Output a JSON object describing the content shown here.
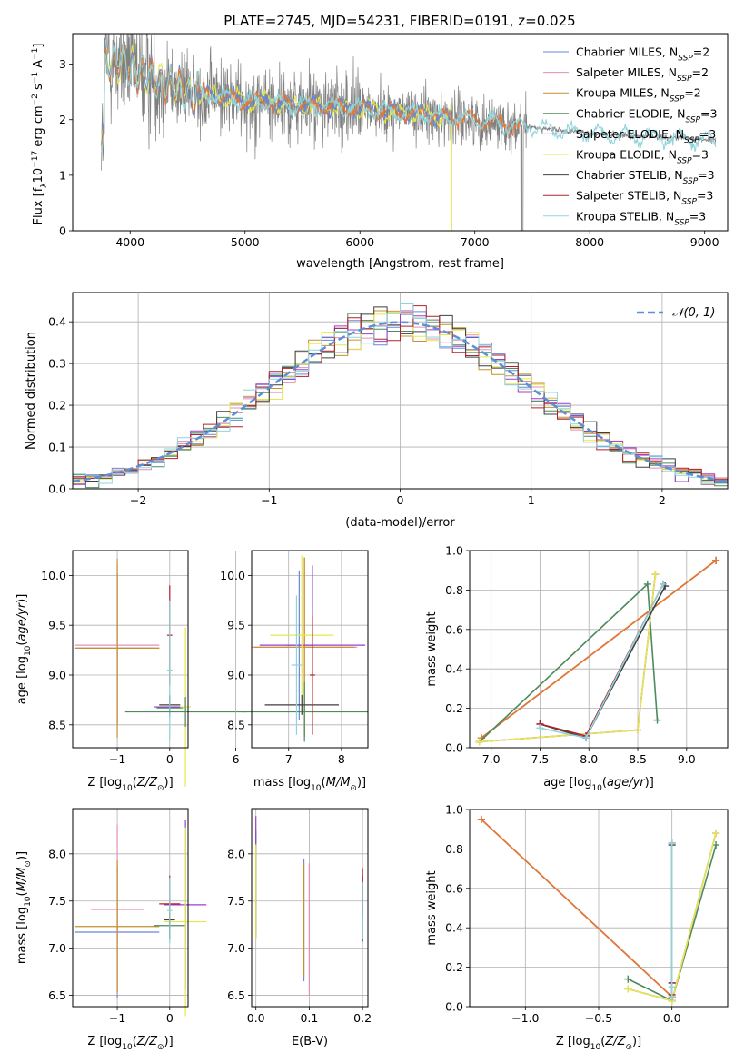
{
  "figure_title": "PLATE=2745, MJD=54231, FIBERID=0191, z=0.025",
  "colors": {
    "Chabrier MILES": "#6a87d8",
    "Salpeter MILES": "#e58fb3",
    "Kroupa MILES": "#c8902e",
    "Chabrier ELODIE": "#4d8a5d",
    "Salpeter ELODIE": "#9a3fcf",
    "Kroupa ELODIE": "#e6e84a",
    "Chabrier STELIB": "#3f3f3f",
    "Salpeter STELIB": "#b3202a",
    "Kroupa STELIB": "#8fd4dc",
    "data": "#808080",
    "orange": "#e0783a",
    "normal": "#5b8fd6"
  },
  "chart_data": [
    {
      "id": "spectrum",
      "type": "line",
      "title": "PLATE=2745, MJD=54231, FIBERID=0191, z=0.025",
      "xlabel": "wavelength [Angstrom, rest frame]",
      "ylabel": "Flux [f_λ 10^-17 erg cm^-2 s^-1 A^-1]",
      "xlim": [
        3500,
        9200
      ],
      "ylim": [
        0,
        3.55
      ],
      "xticks": [
        "4000",
        "5000",
        "6000",
        "7000",
        "8000",
        "9000"
      ],
      "yticks": [
        "0",
        "1",
        "2",
        "3"
      ],
      "grid": false,
      "legend_position": "top-right",
      "legend": [
        {
          "name": "Chabrier MILES",
          "nssp": "2"
        },
        {
          "name": "Salpeter MILES",
          "nssp": "2"
        },
        {
          "name": "Kroupa MILES",
          "nssp": "2"
        },
        {
          "name": "Chabrier ELODIE",
          "nssp": "3"
        },
        {
          "name": "Salpeter ELODIE",
          "nssp": "3"
        },
        {
          "name": "Kroupa ELODIE",
          "nssp": "3"
        },
        {
          "name": "Chabrier STELIB",
          "nssp": "3"
        },
        {
          "name": "Salpeter STELIB",
          "nssp": "3"
        },
        {
          "name": "Kroupa STELIB",
          "nssp": "3"
        }
      ],
      "continuum": [
        [
          3780,
          3.1
        ],
        [
          3900,
          3.05
        ],
        [
          4000,
          2.95
        ],
        [
          4100,
          2.85
        ],
        [
          4200,
          2.75
        ],
        [
          4300,
          2.65
        ],
        [
          4500,
          2.5
        ],
        [
          4700,
          2.45
        ],
        [
          5000,
          2.35
        ],
        [
          5300,
          2.3
        ],
        [
          5600,
          2.25
        ],
        [
          6000,
          2.2
        ],
        [
          6500,
          2.1
        ],
        [
          7000,
          2.0
        ],
        [
          7400,
          1.88
        ],
        [
          8000,
          1.75
        ],
        [
          8500,
          1.7
        ],
        [
          9100,
          1.63
        ]
      ],
      "data_range": [
        3750,
        9100
      ],
      "model_range_miles_elodie": [
        3750,
        6800
      ],
      "model_range_stelib": [
        3750,
        7400
      ]
    },
    {
      "id": "residuals",
      "type": "histogram",
      "xlabel": "(data-model)/error",
      "ylabel": "Normed distribution",
      "xlim": [
        -2.5,
        2.5
      ],
      "ylim": [
        0,
        0.47
      ],
      "xticks": [
        "−2",
        "−1",
        "0",
        "1",
        "2"
      ],
      "yticks": [
        "0.0",
        "0.1",
        "0.2",
        "0.3",
        "0.4"
      ],
      "grid": true,
      "legend_position": "top-right",
      "legend": "𝒩(0, 1)",
      "bin_width": 0.1
    },
    {
      "id": "age_vs_Z",
      "type": "errorbar",
      "xlabel": "Z [log10(Z/Z☉)]",
      "ylabel": "age  [log10(age/yr)]",
      "xlim": [
        -1.85,
        0.35
      ],
      "ylim": [
        8.27,
        10.25
      ],
      "xticks": [
        "−1",
        "0"
      ],
      "yticks": [
        "8.5",
        "9.0",
        "9.5",
        "10.0"
      ],
      "grid": true,
      "series": [
        {
          "name": "Chabrier MILES",
          "x": -1.0,
          "y": 9.27,
          "xerr": 0.8,
          "yerr": 0.75
        },
        {
          "name": "Salpeter MILES",
          "x": -1.0,
          "y": 9.3,
          "xerr": 0.8,
          "yerr": 0.8
        },
        {
          "name": "Kroupa MILES",
          "x": -1.0,
          "y": 9.27,
          "xerr": 0.8,
          "yerr": 0.9
        },
        {
          "name": "Chabrier ELODIE",
          "x": 0.0,
          "y": 8.67,
          "xerr": 0.25,
          "yerr": 0.05
        },
        {
          "name": "Salpeter ELODIE",
          "x": 0.0,
          "y": 8.68,
          "xerr": 0.3,
          "yerr": 0.1
        },
        {
          "name": "Kroupa ELODIE",
          "x": 0.3,
          "y": 8.68,
          "xerr": 0.1,
          "yerr": 0.8
        },
        {
          "name": "Chabrier STELIB",
          "x": 0.0,
          "y": 8.7,
          "xerr": 0.2,
          "yerr": 0.1
        },
        {
          "name": "Salpeter STELIB",
          "x": 0.0,
          "y": 9.4,
          "xerr": 0.05,
          "yerr": 0.5
        },
        {
          "name": "Kroupa STELIB",
          "x": 0.0,
          "y": 9.05,
          "xerr": 0.05,
          "yerr": 0.7
        },
        {
          "name": "Chabrier ELODIE",
          "x": 0.3,
          "y": 8.63,
          "xerr": 1.15,
          "yerr": 0.15
        }
      ]
    },
    {
      "id": "age_vs_mass",
      "type": "errorbar",
      "xlabel": "mass [log10(M/M☉)]",
      "ylabel": "",
      "xlim": [
        6.3,
        8.5
      ],
      "ylim": [
        8.27,
        10.25
      ],
      "xticks": [
        "6",
        "7",
        "8"
      ],
      "yticks": [
        "8.5",
        "9.0",
        "9.5",
        "10.0"
      ],
      "grid": true,
      "series": [
        {
          "name": "Chabrier MILES",
          "x": 7.2,
          "y": 9.3,
          "xerr": 0.25,
          "yerr": 0.75
        },
        {
          "name": "Salpeter MILES",
          "x": 7.3,
          "y": 9.28,
          "xerr": 1.0,
          "yerr": 0.9
        },
        {
          "name": "Kroupa MILES",
          "x": 7.3,
          "y": 9.28,
          "xerr": 0.95,
          "yerr": 0.9
        },
        {
          "name": "Chabrier ELODIE",
          "x": 7.3,
          "y": 8.63,
          "xerr": 1.2,
          "yerr": 0.3
        },
        {
          "name": "Salpeter ELODIE",
          "x": 7.45,
          "y": 9.3,
          "xerr": 1.0,
          "yerr": 0.8
        },
        {
          "name": "Kroupa ELODIE",
          "x": 7.25,
          "y": 9.4,
          "xerr": 0.6,
          "yerr": 0.8
        },
        {
          "name": "Chabrier STELIB",
          "x": 7.25,
          "y": 8.7,
          "xerr": 0.7,
          "yerr": 0.1
        },
        {
          "name": "Salpeter STELIB",
          "x": 7.45,
          "y": 9.0,
          "xerr": 0.05,
          "yerr": 0.6
        },
        {
          "name": "Kroupa STELIB",
          "x": 7.15,
          "y": 9.1,
          "xerr": 0.1,
          "yerr": 0.7
        }
      ]
    },
    {
      "id": "weight_vs_age",
      "type": "line",
      "xlabel": "age  [log10(age/yr)]",
      "ylabel": "mass weight",
      "xlim": [
        6.78,
        9.42
      ],
      "ylim": [
        0,
        1.0
      ],
      "xticks": [
        "7.0",
        "7.5",
        "8.0",
        "8.5",
        "9.0"
      ],
      "yticks": [
        "0.0",
        "0.2",
        "0.4",
        "0.6",
        "0.8",
        "1.0"
      ],
      "grid": true,
      "series": [
        {
          "name": "Chabrier MILES",
          "x": [
            6.9,
            9.3
          ],
          "y": [
            0.05,
            0.95
          ]
        },
        {
          "name": "Salpeter MILES",
          "x": [
            6.9,
            9.3
          ],
          "y": [
            0.05,
            0.95
          ]
        },
        {
          "name": "Kroupa MILES",
          "x": [
            6.9,
            9.3
          ],
          "y": [
            0.05,
            0.95
          ]
        },
        {
          "name": "Chabrier ELODIE",
          "x": [
            6.88,
            8.6,
            8.7
          ],
          "y": [
            0.03,
            0.83,
            0.14
          ]
        },
        {
          "name": "Salpeter ELODIE",
          "x": [
            6.88,
            8.5,
            8.68
          ],
          "y": [
            0.03,
            0.09,
            0.88
          ]
        },
        {
          "name": "Kroupa ELODIE",
          "x": [
            6.88,
            8.5,
            8.68
          ],
          "y": [
            0.03,
            0.09,
            0.88
          ]
        },
        {
          "name": "Chabrier STELIB",
          "x": [
            7.5,
            7.97,
            8.78
          ],
          "y": [
            0.12,
            0.05,
            0.82
          ]
        },
        {
          "name": "Salpeter STELIB",
          "x": [
            7.5,
            7.97,
            8.76
          ],
          "y": [
            0.12,
            0.06,
            0.83
          ]
        },
        {
          "name": "Kroupa STELIB",
          "x": [
            7.5,
            7.97,
            8.76
          ],
          "y": [
            0.1,
            0.05,
            0.83
          ]
        }
      ]
    },
    {
      "id": "mass_vs_Z",
      "type": "errorbar",
      "xlabel": "Z [log10(Z/Z☉)]",
      "ylabel": "mass [log10(M/M☉)]",
      "xlim": [
        -1.85,
        0.35
      ],
      "ylim": [
        6.38,
        8.48
      ],
      "xticks": [
        "−1",
        "0"
      ],
      "yticks": [
        "6.5",
        "7.0",
        "7.5",
        "8.0"
      ],
      "grid": true,
      "series": [
        {
          "name": "Chabrier MILES",
          "x": -1.0,
          "y": 7.17,
          "xerr": 0.8,
          "yerr": 0.7
        },
        {
          "name": "Salpeter MILES",
          "x": -1.0,
          "y": 7.41,
          "xerr": 0.5,
          "yerr": 0.9
        },
        {
          "name": "Kroupa MILES",
          "x": -1.0,
          "y": 7.23,
          "xerr": 0.8,
          "yerr": 0.7
        },
        {
          "name": "Chabrier ELODIE",
          "x": 0.0,
          "y": 7.24,
          "xerr": 0.3,
          "yerr": 0.15
        },
        {
          "name": "Salpeter ELODIE",
          "x": 0.3,
          "y": 7.46,
          "xerr": 0.4,
          "yerr": 0.9
        },
        {
          "name": "Kroupa ELODIE",
          "x": 0.3,
          "y": 7.28,
          "xerr": 0.4,
          "yerr": 1.0
        },
        {
          "name": "Chabrier STELIB",
          "x": 0.0,
          "y": 7.3,
          "xerr": 0.1,
          "yerr": 0.2
        },
        {
          "name": "Salpeter STELIB",
          "x": 0.0,
          "y": 7.47,
          "xerr": 0.2,
          "yerr": 0.3
        },
        {
          "name": "Kroupa STELIB",
          "x": 0.0,
          "y": 7.4,
          "xerr": 0.05,
          "yerr": 0.35
        }
      ]
    },
    {
      "id": "mass_vs_ebv",
      "type": "errorbar",
      "xlabel": "E(B-V)",
      "ylabel": "",
      "xlim": [
        -0.008,
        0.21
      ],
      "ylim": [
        6.38,
        8.48
      ],
      "xticks": [
        "0.0",
        "0.1",
        "0.2"
      ],
      "yticks": [
        "6.5",
        "7.0",
        "7.5",
        "8.0"
      ],
      "grid": true,
      "series": [
        {
          "name": "Chabrier MILES",
          "x": 0.09,
          "y": 7.3,
          "xerr": 0,
          "yerr": 0.65
        },
        {
          "name": "Salpeter MILES",
          "x": 0.1,
          "y": 7.2,
          "xerr": 0,
          "yerr": 0.7
        },
        {
          "name": "Kroupa MILES",
          "x": 0.09,
          "y": 7.3,
          "xerr": 0,
          "yerr": 0.6
        },
        {
          "name": "Chabrier ELODIE",
          "x": 0.0,
          "y": 7.7,
          "xerr": 0,
          "yerr": 0.55
        },
        {
          "name": "Salpeter ELODIE",
          "x": 0.0,
          "y": 7.75,
          "xerr": 0,
          "yerr": 0.65
        },
        {
          "name": "Kroupa ELODIE",
          "x": 0.0,
          "y": 7.6,
          "xerr": 0,
          "yerr": 0.5
        },
        {
          "name": "Chabrier STELIB",
          "x": 0.2,
          "y": 7.42,
          "xerr": 0,
          "yerr": 0.35
        },
        {
          "name": "Salpeter STELIB",
          "x": 0.2,
          "y": 7.6,
          "xerr": 0,
          "yerr": 0.25
        },
        {
          "name": "Kroupa STELIB",
          "x": 0.2,
          "y": 7.4,
          "xerr": 0,
          "yerr": 0.3
        }
      ]
    },
    {
      "id": "weight_vs_Z",
      "type": "line",
      "xlabel": "Z [log10(Z/Z☉)]",
      "ylabel": "mass weight",
      "xlim": [
        -1.38,
        0.38
      ],
      "ylim": [
        0,
        1.0
      ],
      "xticks": [
        "−1.0",
        "−0.5",
        "0.0"
      ],
      "yticks": [
        "0.0",
        "0.2",
        "0.4",
        "0.6",
        "0.8",
        "1.0"
      ],
      "grid": true,
      "series": [
        {
          "name": "Chabrier MILES",
          "x": [
            -1.3,
            0.0
          ],
          "y": [
            0.95,
            0.05
          ]
        },
        {
          "name": "Salpeter MILES",
          "x": [
            -1.3,
            0.0
          ],
          "y": [
            0.95,
            0.05
          ]
        },
        {
          "name": "Kroupa MILES",
          "x": [
            -1.3,
            0.0
          ],
          "y": [
            0.95,
            0.05
          ]
        },
        {
          "name": "Chabrier ELODIE",
          "x": [
            -0.3,
            0.0,
            0.3
          ],
          "y": [
            0.14,
            0.03,
            0.82
          ]
        },
        {
          "name": "Salpeter ELODIE",
          "x": [
            -0.3,
            0.0,
            0.3
          ],
          "y": [
            0.09,
            0.03,
            0.88
          ]
        },
        {
          "name": "Kroupa ELODIE",
          "x": [
            -0.3,
            0.0,
            0.3
          ],
          "y": [
            0.09,
            0.03,
            0.88
          ]
        },
        {
          "name": "Chabrier STELIB",
          "x": [
            0.0,
            0.0,
            0.0
          ],
          "y": [
            0.12,
            0.05,
            0.82
          ]
        },
        {
          "name": "Salpeter STELIB",
          "x": [
            0.0,
            0.0,
            0.0
          ],
          "y": [
            0.12,
            0.06,
            0.83
          ]
        },
        {
          "name": "Kroupa STELIB",
          "x": [
            0.0,
            0.0,
            0.0
          ],
          "y": [
            0.1,
            0.05,
            0.83
          ]
        }
      ]
    }
  ]
}
